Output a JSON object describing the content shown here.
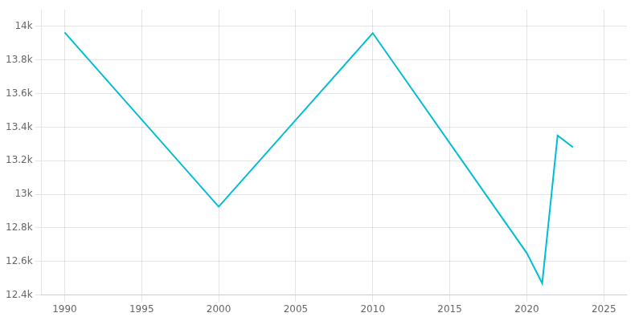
{
  "chart_data": {
    "type": "line",
    "x": [
      1990,
      2000,
      2010,
      2020,
      2021,
      2022,
      2023
    ],
    "values": [
      13964,
      12926,
      13960,
      12650,
      12470,
      13350,
      13280
    ],
    "color": "#00bcd4",
    "xlim": [
      1988.5,
      2026.5
    ],
    "xticks": [
      1990,
      1995,
      2000,
      2005,
      2010,
      2015,
      2020,
      2025
    ],
    "ylim": [
      12400,
      14100
    ],
    "yticks": [
      {
        "value": 12400,
        "label": "12.4k"
      },
      {
        "value": 12600,
        "label": "12.6k"
      },
      {
        "value": 12800,
        "label": "12.8k"
      },
      {
        "value": 13000,
        "label": "13k"
      },
      {
        "value": 13200,
        "label": "13.2k"
      },
      {
        "value": 13400,
        "label": "13.4k"
      },
      {
        "value": 13600,
        "label": "13.6k"
      },
      {
        "value": 13800,
        "label": "13.8k"
      },
      {
        "value": 14000,
        "label": "14k"
      }
    ],
    "grid": true
  }
}
